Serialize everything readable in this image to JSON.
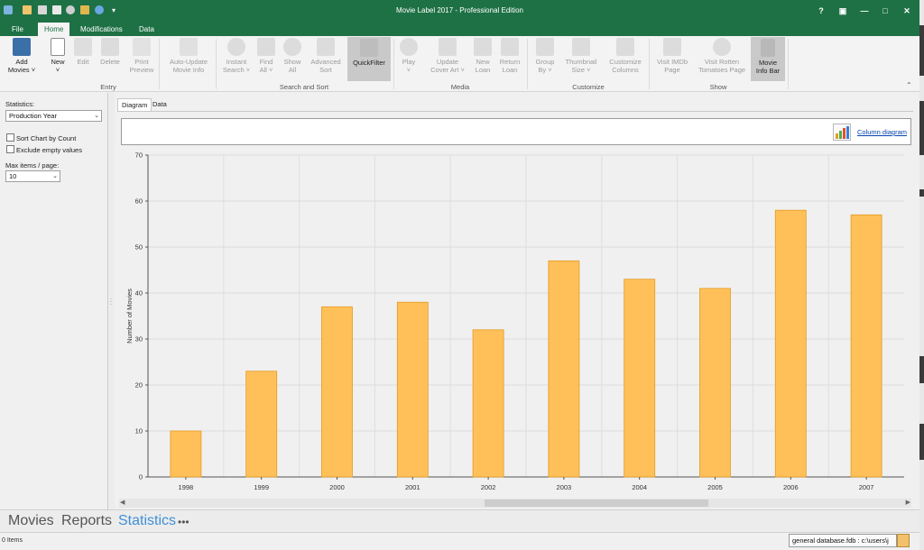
{
  "window": {
    "title": "Movie Label 2017 - Professional Edition",
    "controls": [
      "?",
      "▣",
      "—",
      "□",
      "✕"
    ]
  },
  "ribbon_tabs": [
    {
      "label": "File",
      "active": false
    },
    {
      "label": "Home",
      "active": true
    },
    {
      "label": "Modifications",
      "active": false
    },
    {
      "label": "Data",
      "active": false
    }
  ],
  "ribbon": {
    "buttons": [
      {
        "label1": "Add",
        "label2": "Movies ˅",
        "icon": "film-icon"
      },
      {
        "label1": "New",
        "label2": "˅",
        "icon": "new-doc-icon"
      },
      {
        "label1": "Edit",
        "label2": "",
        "icon": "edit-icon"
      },
      {
        "label1": "Delete",
        "label2": "",
        "icon": "delete-icon"
      },
      {
        "label1": "Print",
        "label2": "Preview",
        "icon": "print-preview-icon"
      },
      {
        "label1": "Auto-Update",
        "label2": "Movie Info",
        "icon": "auto-update-icon"
      },
      {
        "label1": "Instant",
        "label2": "Search ˅",
        "icon": "instant-search-icon"
      },
      {
        "label1": "Find",
        "label2": "All ˅",
        "icon": "find-all-icon"
      },
      {
        "label1": "Show",
        "label2": "All",
        "icon": "show-all-icon"
      },
      {
        "label1": "Advanced",
        "label2": "Sort",
        "icon": "advanced-sort-icon"
      },
      {
        "label1": "QuickFilter",
        "label2": "",
        "icon": "quickfilter-icon"
      },
      {
        "label1": "Play",
        "label2": "˅",
        "icon": "play-icon"
      },
      {
        "label1": "Update",
        "label2": "Cover Art ˅",
        "icon": "cover-art-icon"
      },
      {
        "label1": "New",
        "label2": "Loan",
        "icon": "new-loan-icon"
      },
      {
        "label1": "Return",
        "label2": "Loan",
        "icon": "return-loan-icon"
      },
      {
        "label1": "Group",
        "label2": "By ˅",
        "icon": "group-by-icon"
      },
      {
        "label1": "Thumbnail",
        "label2": "Size ˅",
        "icon": "thumbnail-icon"
      },
      {
        "label1": "Customize",
        "label2": "Columns",
        "icon": "columns-icon"
      },
      {
        "label1": "Visit IMDb",
        "label2": "Page",
        "icon": "imdb-icon"
      },
      {
        "label1": "Visit Rotten",
        "label2": "Tomatoes Page",
        "icon": "tomato-icon"
      },
      {
        "label1": "Movie",
        "label2": "Info Bar",
        "icon": "info-bar-icon"
      }
    ],
    "groups": [
      "Entry",
      "Search and Sort",
      "Media",
      "Customize",
      "Show"
    ]
  },
  "left_panel": {
    "statistics_label": "Statistics:",
    "statistics_value": "Production Year",
    "sort_by_count": "Sort Chart by Count",
    "exclude_empty": "Exclude empty values",
    "max_items_label": "Max items / page:",
    "max_items_value": "10"
  },
  "content_tabs": [
    {
      "label": "Diagram",
      "active": true
    },
    {
      "label": "Data",
      "active": false
    }
  ],
  "diagram_type_link": "Column diagram",
  "chart_data": {
    "type": "bar",
    "categories": [
      "1998",
      "1999",
      "2000",
      "2001",
      "2002",
      "2003",
      "2004",
      "2005",
      "2006",
      "2007"
    ],
    "values": [
      10,
      23,
      37,
      38,
      32,
      47,
      43,
      41,
      58,
      57
    ],
    "title": "",
    "xlabel": "",
    "ylabel": "Number of Movies",
    "ylim": [
      0,
      70
    ],
    "yticks": [
      0,
      10,
      20,
      30,
      40,
      50,
      60,
      70
    ],
    "grid": true,
    "bar_color": "#ffc05a",
    "bar_border": "#e59a1f"
  },
  "bottom_nav": [
    {
      "label": "Movies",
      "active": false
    },
    {
      "label": "Reports",
      "active": false
    },
    {
      "label": "Statistics",
      "active": true
    },
    {
      "label": "•••",
      "active": false
    }
  ],
  "status": {
    "items": "0 Items",
    "database": "general database.fdb  :  c:\\users\\j"
  },
  "colors": {
    "accent": "#1e7145",
    "link": "#0645ad",
    "active_nav": "#3f8fd6"
  }
}
